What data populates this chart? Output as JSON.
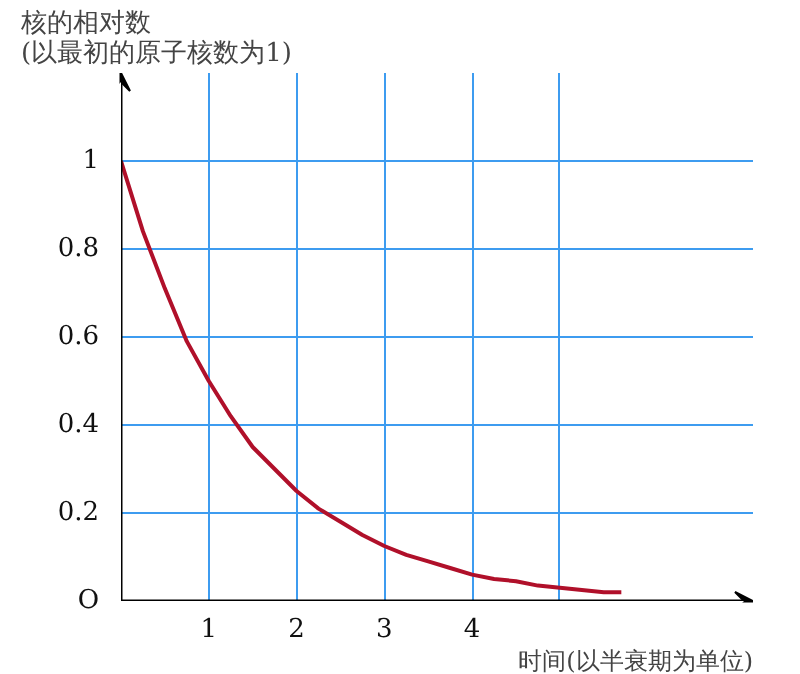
{
  "chart_data": {
    "type": "line",
    "ylabel": "核的相对数\n(以最初的原子核数为1)",
    "xlabel": "时间(以半衰期为单位)",
    "xlim": [
      0,
      7.2
    ],
    "ylim": [
      0,
      1.2
    ],
    "xticks": [
      1,
      2,
      3,
      4,
      {
        "value": 5,
        "label": null
      }
    ],
    "yticks": [
      {
        "value": 0,
        "label": "O"
      },
      0.2,
      0.4,
      0.6,
      0.8,
      1
    ],
    "grid": true,
    "marker": "none",
    "line_style": "solid",
    "series": [
      {
        "color": "#b0102a",
        "x": [
          0,
          0.25,
          0.5,
          0.75,
          1,
          1.25,
          1.5,
          1.75,
          2,
          2.25,
          2.5,
          2.75,
          3,
          3.25,
          3.5,
          3.75,
          4,
          4.25,
          4.5,
          4.75,
          5,
          5.25,
          5.5,
          5.7
        ],
        "values": [
          1,
          0.84,
          0.71,
          0.59,
          0.5,
          0.42,
          0.35,
          0.3,
          0.25,
          0.21,
          0.18,
          0.15,
          0.125,
          0.105,
          0.09,
          0.075,
          0.06,
          0.05,
          0.045,
          0.035,
          0.03,
          0.025,
          0.02,
          0.02
        ]
      }
    ]
  }
}
